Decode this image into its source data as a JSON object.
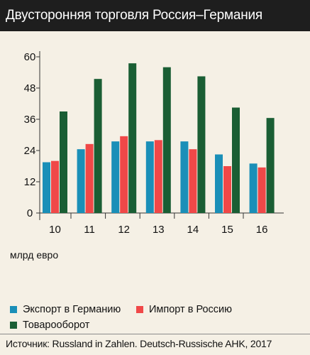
{
  "title": "Двусторонняя торговля Россия–Германия",
  "unit_label": "млрд евро",
  "source": "Источник: Russland in Zahlen. Deutsch-Russische AHK, 2017",
  "colors": {
    "export": "#1a8fb8",
    "import": "#f04848",
    "turnover": "#1a5e34"
  },
  "legend": [
    {
      "label": "Экспорт в Германию",
      "color": "#1a8fb8"
    },
    {
      "label": "Импорт в Россию",
      "color": "#f04848"
    },
    {
      "label": "Товарооборот",
      "color": "#1a5e34"
    }
  ],
  "chart_data": {
    "type": "bar",
    "categories": [
      "10",
      "11",
      "12",
      "13",
      "14",
      "15",
      "16"
    ],
    "series": [
      {
        "name": "Экспорт в Германию",
        "values": [
          19.5,
          24.5,
          27.5,
          27.5,
          27.5,
          22.5,
          19
        ]
      },
      {
        "name": "Импорт в Россию",
        "values": [
          20,
          26.5,
          29.5,
          28,
          24.5,
          18,
          17.5
        ]
      },
      {
        "name": "Товарооборот",
        "values": [
          39,
          51.5,
          57.5,
          56,
          52.5,
          40.5,
          36.5
        ]
      }
    ],
    "yticks": [
      0,
      12,
      24,
      36,
      48,
      60
    ],
    "ylim": [
      0,
      60
    ],
    "ylabel": "млрд евро",
    "grid": false,
    "legend_position": "bottom"
  }
}
